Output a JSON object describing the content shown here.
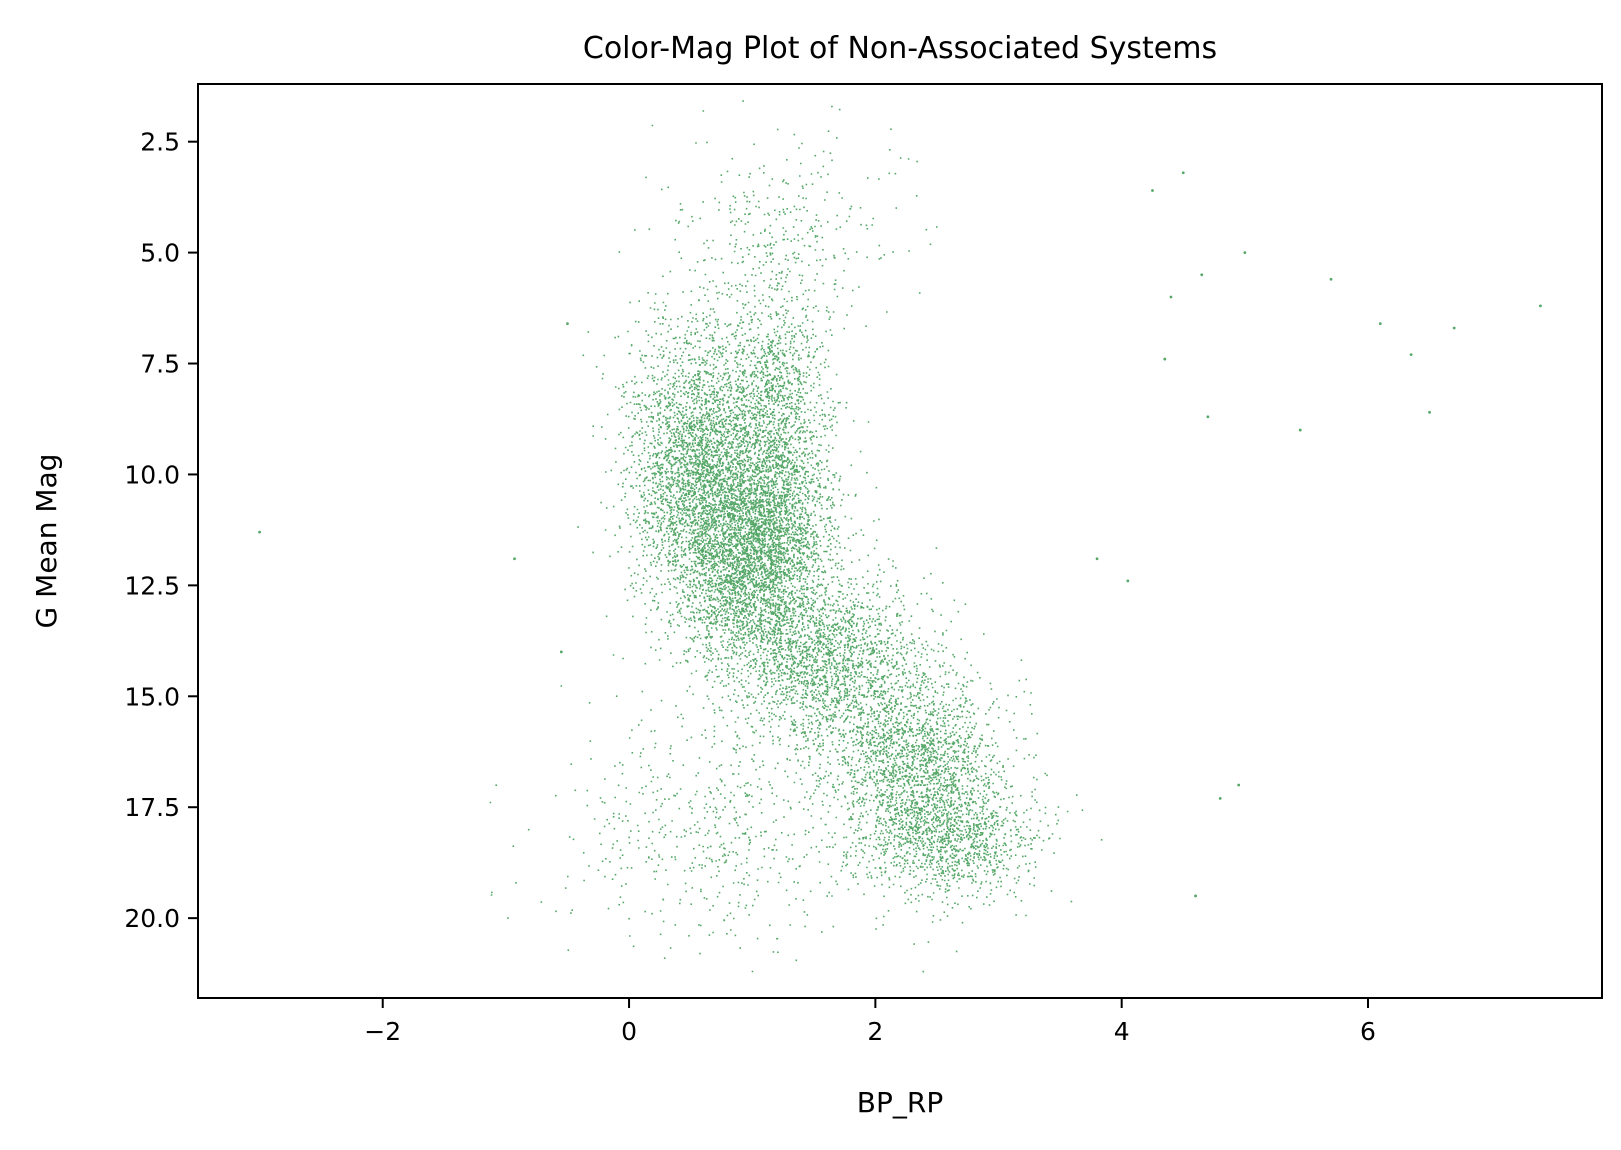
{
  "chart_data": {
    "type": "scatter",
    "title": "Color-Mag Plot of Non-Associated Systems",
    "xlabel": "BP_RP",
    "ylabel": "G Mean Mag",
    "xlim": [
      -3.5,
      7.9
    ],
    "ylim": [
      21.8,
      1.2
    ],
    "y_inverted": true,
    "grid": false,
    "legend": "none",
    "marker_color": "#55a868",
    "x_ticks": [
      -2,
      0,
      2,
      4,
      6
    ],
    "x_tick_labels": [
      "−2",
      "0",
      "2",
      "4",
      "6"
    ],
    "y_ticks": [
      2.5,
      5.0,
      7.5,
      10.0,
      12.5,
      15.0,
      17.5,
      20.0
    ],
    "y_tick_labels": [
      "2.5",
      "5.0",
      "7.5",
      "10.0",
      "12.5",
      "15.0",
      "17.5",
      "20.0"
    ],
    "series": [
      {
        "marker": "dot",
        "density_regions": [
          {
            "x_center": 0.55,
            "y_center": 9.8,
            "x_spread": 0.28,
            "y_spread": 1.6,
            "weight": 0.22
          },
          {
            "x_center": 1.0,
            "y_center": 11.8,
            "x_spread": 0.3,
            "y_spread": 1.3,
            "weight": 0.25
          },
          {
            "x_center": 1.2,
            "y_center": 9.0,
            "x_spread": 0.22,
            "y_spread": 1.8,
            "weight": 0.12
          },
          {
            "x_center": 1.6,
            "y_center": 14.2,
            "x_spread": 0.35,
            "y_spread": 1.0,
            "weight": 0.13
          },
          {
            "x_center": 2.3,
            "y_center": 16.4,
            "x_spread": 0.35,
            "y_spread": 1.1,
            "weight": 0.14
          },
          {
            "x_center": 2.6,
            "y_center": 18.2,
            "x_spread": 0.35,
            "y_spread": 0.7,
            "weight": 0.08
          },
          {
            "x_center": 0.7,
            "y_center": 18.0,
            "x_spread": 0.6,
            "y_spread": 1.3,
            "weight": 0.04
          },
          {
            "x_center": 1.2,
            "y_center": 4.5,
            "x_spread": 0.5,
            "y_spread": 1.2,
            "weight": 0.02
          }
        ],
        "isolated_points": [
          {
            "x": -3.0,
            "y": 11.3
          },
          {
            "x": -0.93,
            "y": 11.9
          },
          {
            "x": -0.5,
            "y": 6.6
          },
          {
            "x": -0.55,
            "y": 14.0
          },
          {
            "x": 4.25,
            "y": 3.6
          },
          {
            "x": 4.5,
            "y": 3.2
          },
          {
            "x": 5.0,
            "y": 5.0
          },
          {
            "x": 5.7,
            "y": 5.6
          },
          {
            "x": 6.1,
            "y": 6.6
          },
          {
            "x": 6.35,
            "y": 7.3
          },
          {
            "x": 6.5,
            "y": 8.6
          },
          {
            "x": 6.7,
            "y": 6.7
          },
          {
            "x": 7.4,
            "y": 6.2
          },
          {
            "x": 5.45,
            "y": 9.0
          },
          {
            "x": 4.7,
            "y": 8.7
          },
          {
            "x": 4.65,
            "y": 5.5
          },
          {
            "x": 4.4,
            "y": 6.0
          },
          {
            "x": 4.35,
            "y": 7.4
          },
          {
            "x": 4.05,
            "y": 12.4
          },
          {
            "x": 4.95,
            "y": 17.0
          },
          {
            "x": 4.8,
            "y": 17.3
          },
          {
            "x": 4.6,
            "y": 19.5
          },
          {
            "x": 3.8,
            "y": 11.9
          }
        ]
      }
    ]
  }
}
